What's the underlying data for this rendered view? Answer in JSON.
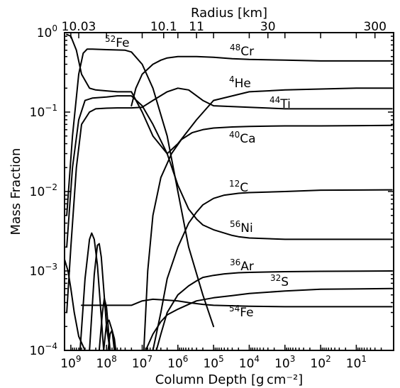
{
  "chart_data": {
    "type": "line",
    "xlabel": "Column Depth [g cm⁻²]",
    "top_xlabel": "Radius [km]",
    "ylabel": "Mass Fraction",
    "x_scale": "log",
    "y_scale": "log",
    "x_reversed": true,
    "xlim": [
      1500000000.0,
      0.9
    ],
    "ylim": [
      0.0001,
      1
    ],
    "x_ticks": [
      {
        "value": 1000000000.0,
        "base": "10",
        "exp": "9"
      },
      {
        "value": 100000000.0,
        "base": "10",
        "exp": "8"
      },
      {
        "value": 10000000.0,
        "base": "10",
        "exp": "7"
      },
      {
        "value": 1000000.0,
        "base": "10",
        "exp": "6"
      },
      {
        "value": 100000.0,
        "base": "10",
        "exp": "5"
      },
      {
        "value": 10000.0,
        "base": "10",
        "exp": "4"
      },
      {
        "value": 1000.0,
        "base": "10",
        "exp": "3"
      },
      {
        "value": 100.0,
        "base": "10",
        "exp": "2"
      },
      {
        "value": 10.0,
        "base": "10",
        "exp": "1"
      }
    ],
    "y_ticks": [
      {
        "value": 1,
        "base": "10",
        "exp": "0"
      },
      {
        "value": 0.1,
        "base": "10",
        "exp": "−1"
      },
      {
        "value": 0.01,
        "base": "10",
        "exp": "−2"
      },
      {
        "value": 0.001,
        "base": "10",
        "exp": "−3"
      },
      {
        "value": 0.0001,
        "base": "10",
        "exp": "−4"
      }
    ],
    "top_ticks": [
      {
        "label": "10.03",
        "x": 600000000.0
      },
      {
        "label": "10.1",
        "x": 2500000.0
      },
      {
        "label": "11",
        "x": 300000.0
      },
      {
        "label": "30",
        "x": 3000.0
      },
      {
        "label": "300",
        "x": 3
      }
    ],
    "series": [
      {
        "name": "Fe",
        "mass": "52",
        "x": [
          1300000000.0,
          900000000.0,
          600000000.0,
          450000000.0,
          350000000.0,
          250000000.0,
          100000000.0,
          30000000.0,
          20000000.0,
          10000000.0,
          5000000.0,
          2000000.0,
          1000000.0,
          500000.0,
          200000.0,
          100000.0
        ],
        "y": [
          0.005,
          0.05,
          0.3,
          0.55,
          0.62,
          0.62,
          0.61,
          0.6,
          0.57,
          0.4,
          0.2,
          0.05,
          0.01,
          0.002,
          0.0005,
          0.0002
        ]
      },
      {
        "name": "Cr",
        "mass": "48",
        "x": [
          20000000.0,
          15000000.0,
          10000000.0,
          5000000.0,
          3000000.0,
          2000000.0,
          1000000.0,
          300000.0,
          100000.0,
          30000.0,
          10000.0,
          1000.0,
          100.0,
          1
        ],
        "y": [
          0.12,
          0.2,
          0.3,
          0.4,
          0.45,
          0.48,
          0.5,
          0.5,
          0.49,
          0.47,
          0.46,
          0.45,
          0.44,
          0.44
        ]
      },
      {
        "name": "He",
        "mass": "4",
        "x": [
          1300000000.0,
          1000000000.0,
          700000000.0,
          500000000.0,
          300000000.0,
          200000000.0,
          100000000.0,
          50000000.0,
          20000000.0,
          10000000.0,
          5000000.0,
          2000000.0,
          1000000.0,
          300000.0,
          100000.0,
          10000.0,
          1000.0,
          10,
          1
        ],
        "y": [
          0.95,
          0.9,
          0.6,
          0.3,
          0.2,
          0.19,
          0.185,
          0.18,
          0.18,
          0.1,
          0.05,
          0.03,
          0.04,
          0.08,
          0.14,
          0.18,
          0.19,
          0.2,
          0.2
        ]
      },
      {
        "name": "Ti",
        "mass": "44",
        "x": [
          1300000000.0,
          1000000000.0,
          700000000.0,
          500000000.0,
          300000000.0,
          200000000.0,
          100000000.0,
          50000000.0,
          30000000.0,
          20000000.0,
          10000000.0,
          5000000.0,
          2000000.0,
          1000000.0,
          500000.0,
          200000.0,
          100000.0,
          10000.0,
          1000.0,
          1
        ],
        "y": [
          0.0003,
          0.002,
          0.02,
          0.07,
          0.1,
          0.11,
          0.112,
          0.113,
          0.113,
          0.113,
          0.115,
          0.14,
          0.18,
          0.2,
          0.19,
          0.14,
          0.12,
          0.115,
          0.11,
          0.11
        ]
      },
      {
        "name": "Ca",
        "mass": "40",
        "x": [
          9000000.0,
          7000000.0,
          5000000.0,
          3000000.0,
          1500000.0,
          800000.0,
          400000.0,
          200000.0,
          100000.0,
          30000.0,
          10000.0,
          1000.0,
          100.0,
          1
        ],
        "y": [
          0.0001,
          0.001,
          0.005,
          0.015,
          0.03,
          0.045,
          0.055,
          0.06,
          0.063,
          0.065,
          0.066,
          0.067,
          0.067,
          0.068
        ]
      },
      {
        "name": "C",
        "mass": "12",
        "x": [
          5000000.0,
          3000000.0,
          2000000.0,
          1000000.0,
          500000.0,
          300000.0,
          200000.0,
          100000.0,
          50000.0,
          20000.0,
          10000.0,
          1000.0,
          100.0,
          1
        ],
        "y": [
          0.0001,
          0.0003,
          0.0008,
          0.002,
          0.004,
          0.0055,
          0.0068,
          0.0082,
          0.009,
          0.0095,
          0.0097,
          0.01,
          0.0104,
          0.0105
        ]
      },
      {
        "name": "Ni",
        "mass": "56",
        "x": [
          1300000000.0,
          900000000.0,
          600000000.0,
          400000000.0,
          250000000.0,
          100000000.0,
          50000000.0,
          20000000.0,
          10000000.0,
          5000000.0,
          2000000.0,
          1000000.0,
          500000.0,
          300000.0,
          200000.0,
          100000.0,
          50000.0,
          30000.0,
          20000.0,
          10000.0,
          1000.0,
          100.0,
          1
        ],
        "y": [
          0.002,
          0.02,
          0.08,
          0.14,
          0.15,
          0.155,
          0.16,
          0.16,
          0.12,
          0.07,
          0.03,
          0.012,
          0.006,
          0.0045,
          0.0038,
          0.0033,
          0.003,
          0.0028,
          0.0027,
          0.0026,
          0.0025,
          0.0025,
          0.0025
        ]
      },
      {
        "name": "Ar",
        "mass": "36",
        "x": [
          8000000.0,
          5000000.0,
          3000000.0,
          2000000.0,
          1000000.0,
          500000.0,
          300000.0,
          100000.0,
          30000.0,
          10000.0,
          1000.0,
          100.0,
          1
        ],
        "y": [
          0.0001,
          0.00016,
          0.00023,
          0.00028,
          0.00033,
          0.00038,
          0.00042,
          0.00046,
          0.00049,
          0.00052,
          0.00056,
          0.00059,
          0.0006
        ]
      },
      {
        "name": "S",
        "mass": "32",
        "x": [
          4000000.0,
          3000000.0,
          2000000.0,
          1000000.0,
          500000.0,
          300000.0,
          200000.0,
          100000.0,
          50000.0,
          20000.0,
          10000.0,
          1000.0,
          100.0,
          1
        ],
        "y": [
          0.0001,
          0.00016,
          0.0003,
          0.0005,
          0.00065,
          0.00075,
          0.00083,
          0.00088,
          0.00092,
          0.00095,
          0.00096,
          0.00098,
          0.00099,
          0.001
        ]
      },
      {
        "name": "Fe",
        "mass": "54",
        "x": [
          500000000.0,
          300000000.0,
          100000000.0,
          50000000.0,
          20000000.0,
          10000000.0,
          5000000.0,
          2000000.0,
          1000000.0,
          500000.0,
          200000.0,
          100000.0,
          10000.0,
          1000.0,
          100.0,
          1
        ],
        "y": [
          0.00037,
          0.00037,
          0.00037,
          0.00037,
          0.00037,
          0.00042,
          0.00044,
          0.00043,
          0.00042,
          0.0004,
          0.00038,
          0.00037,
          0.00036,
          0.000355,
          0.000355,
          0.000355
        ]
      },
      {
        "name": "",
        "mass": "",
        "x": [
          1500000000.0,
          1200000000.0,
          1000000000.0,
          800000000.0,
          600000000.0,
          400000000.0
        ],
        "y": [
          0.0014,
          0.001,
          0.0006,
          0.0003,
          0.00015,
          0.0001
        ]
      },
      {
        "name": "",
        "mass": "",
        "x": [
          550000000.0,
          400000000.0,
          300000000.0,
          260000000.0,
          220000000.0,
          180000000.0,
          150000000.0,
          120000000.0
        ],
        "y": [
          0.0001,
          0.0008,
          0.0025,
          0.003,
          0.0025,
          0.0012,
          0.0004,
          0.0001
        ]
      },
      {
        "name": "",
        "mass": "",
        "x": [
          300000000.0,
          220000000.0,
          180000000.0,
          160000000.0,
          140000000.0,
          120000000.0,
          100000000.0,
          80000000.0
        ],
        "y": [
          0.0001,
          0.0009,
          0.0021,
          0.0022,
          0.0015,
          0.0006,
          0.0002,
          0.0001
        ]
      },
      {
        "name": "",
        "mass": "",
        "x": [
          160000000.0,
          130000000.0,
          115000000.0,
          100000000.0,
          90000000.0,
          80000000.0
        ],
        "y": [
          0.0001,
          0.0003,
          0.00045,
          0.00035,
          0.0002,
          0.0001
        ]
      },
      {
        "name": "",
        "mass": "",
        "x": [
          120000000.0,
          100000000.0,
          85000000.0,
          70000000.0,
          60000000.0
        ],
        "y": [
          0.0001,
          0.00022,
          0.00024,
          0.00018,
          0.0001
        ]
      },
      {
        "name": "",
        "mass": "",
        "x": [
          90000000.0,
          80000000.0,
          70000000.0,
          60000000.0,
          55000000.0
        ],
        "y": [
          0.0001,
          0.00016,
          0.00018,
          0.00014,
          0.0001
        ]
      }
    ]
  }
}
